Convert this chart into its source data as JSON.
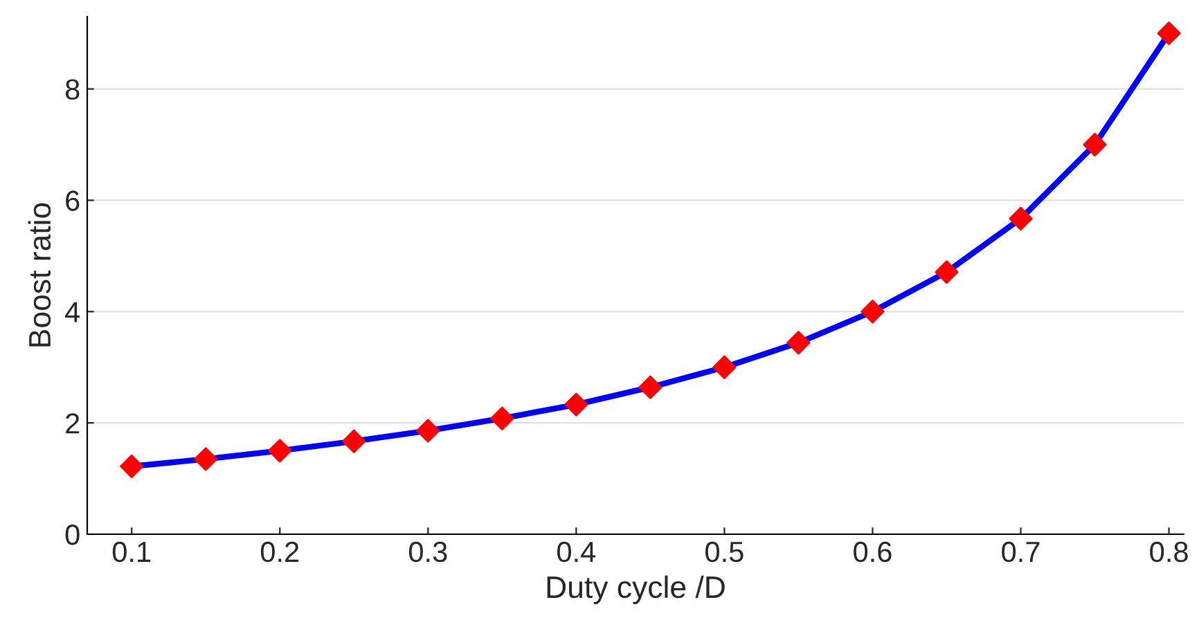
{
  "chart_data": {
    "type": "line",
    "xlabel": "Duty cycle /D",
    "ylabel": "Boost ratio",
    "x": [
      0.1,
      0.15,
      0.2,
      0.25,
      0.3,
      0.35,
      0.4,
      0.45,
      0.5,
      0.55,
      0.6,
      0.65,
      0.7,
      0.75,
      0.8
    ],
    "series": [
      {
        "color": "#0000ff",
        "colors": [
          "#ff0000",
          "#ff0000",
          "#ff0000",
          "#ff0000",
          "#ff0000",
          "#ff0000",
          "#ff0000",
          "#ff0000",
          "#ff0000",
          "#ff0000",
          "#ff0000",
          "#ff0000",
          "#ff0000",
          "#ff0000",
          "#ff0000"
        ],
        "values": [
          1.22,
          1.35,
          1.5,
          1.67,
          1.86,
          2.08,
          2.33,
          2.64,
          3,
          3.44,
          4,
          4.71,
          5.67,
          7,
          9
        ]
      }
    ],
    "xlim": [
      0.07,
      0.81
    ],
    "xticks": [
      0.1,
      0.2,
      0.3,
      0.4,
      0.5,
      0.6,
      0.7,
      0.8
    ],
    "ylim": [
      0,
      9.3
    ],
    "yticks": [
      0,
      2,
      4,
      6,
      8
    ],
    "grid": "y",
    "marker": "diamond",
    "line_style": "solid",
    "legend": false
  }
}
